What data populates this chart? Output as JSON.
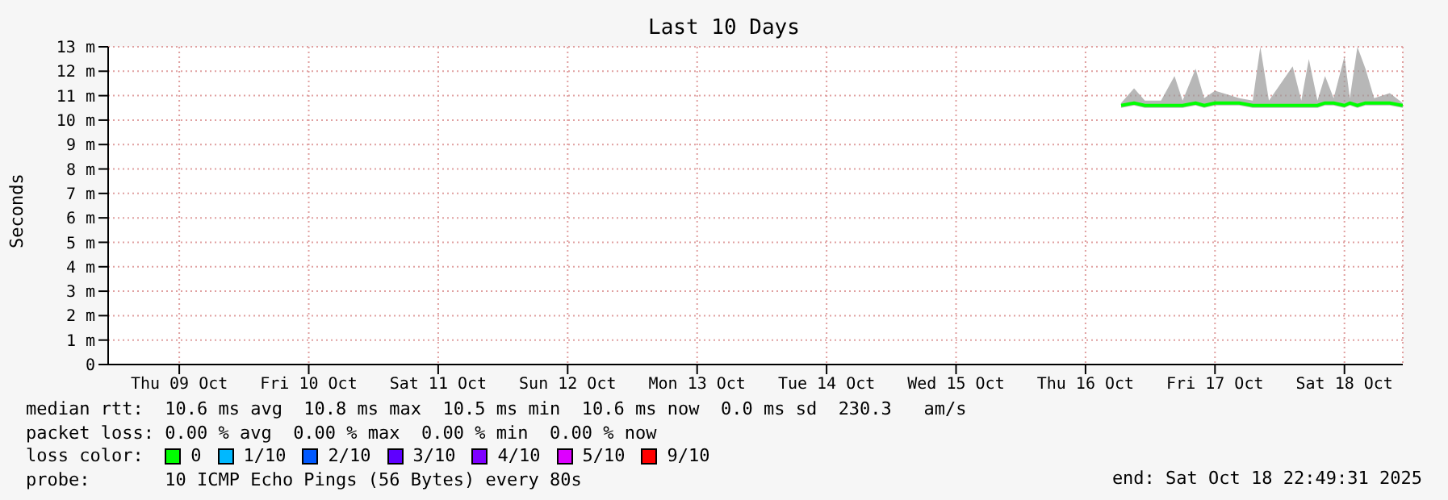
{
  "chart_data": {
    "type": "line",
    "title": "Last 10 Days",
    "ylabel": "Seconds",
    "x": [
      "2025-10-16T18:36",
      "2025-10-16T21:00",
      "2025-10-16T23:00",
      "2025-10-17T02:00",
      "2025-10-17T04:30",
      "2025-10-17T06:00",
      "2025-10-17T08:24",
      "2025-10-17T10:00",
      "2025-10-17T12:00",
      "2025-10-17T16:30",
      "2025-10-17T19:00",
      "2025-10-17T20:24",
      "2025-10-17T22:00",
      "2025-10-18T02:24",
      "2025-10-18T04:00",
      "2025-10-18T05:24",
      "2025-10-18T07:00",
      "2025-10-18T08:24",
      "2025-10-18T10:00",
      "2025-10-18T12:00",
      "2025-10-18T13:00",
      "2025-10-18T14:24",
      "2025-10-18T15:54",
      "2025-10-18T17:30",
      "2025-10-18T20:24",
      "2025-10-18T22:48"
    ],
    "series": [
      {
        "name": "0",
        "color": "#00ff00",
        "values": [
          10.6,
          10.7,
          10.6,
          10.6,
          10.6,
          10.6,
          10.7,
          10.6,
          10.7,
          10.7,
          10.6,
          10.6,
          10.6,
          10.6,
          10.6,
          10.6,
          10.6,
          10.7,
          10.7,
          10.6,
          10.7,
          10.6,
          10.7,
          10.7,
          10.7,
          10.6
        ],
        "lower": [
          10.5,
          10.6,
          10.5,
          10.5,
          10.5,
          10.5,
          10.6,
          10.5,
          10.6,
          10.6,
          10.5,
          10.5,
          10.5,
          10.5,
          10.5,
          10.5,
          10.5,
          10.6,
          10.6,
          10.5,
          10.6,
          10.5,
          10.6,
          10.6,
          10.6,
          10.5
        ],
        "upper": [
          10.7,
          11.3,
          10.8,
          10.8,
          11.8,
          10.8,
          12.1,
          10.9,
          11.2,
          10.9,
          10.8,
          13.0,
          10.8,
          12.2,
          10.8,
          12.5,
          10.8,
          11.8,
          10.9,
          12.6,
          10.9,
          13.0,
          12.1,
          10.9,
          11.1,
          10.7
        ]
      },
      {
        "name": "1/10",
        "color": "#00b8ff",
        "values": [
          null,
          null,
          null,
          null,
          null,
          null,
          null,
          null,
          null,
          null,
          null,
          null,
          null,
          null,
          null,
          null,
          null,
          null,
          null,
          null,
          null,
          null,
          null,
          null,
          null,
          null
        ]
      },
      {
        "name": "2/10",
        "color": "#0059ff",
        "values": [
          null,
          null,
          null,
          null,
          null,
          null,
          null,
          null,
          null,
          null,
          null,
          null,
          null,
          null,
          null,
          null,
          null,
          null,
          null,
          null,
          null,
          null,
          null,
          null,
          null,
          null
        ]
      },
      {
        "name": "3/10",
        "color": "#5e00ff",
        "values": [
          null,
          null,
          null,
          null,
          null,
          null,
          null,
          null,
          null,
          null,
          null,
          null,
          null,
          null,
          null,
          null,
          null,
          null,
          null,
          null,
          null,
          null,
          null,
          null,
          null,
          null
        ]
      },
      {
        "name": "4/10",
        "color": "#7e00ff",
        "values": [
          null,
          null,
          null,
          null,
          null,
          null,
          null,
          null,
          null,
          null,
          null,
          null,
          null,
          null,
          null,
          null,
          null,
          null,
          null,
          null,
          null,
          null,
          null,
          null,
          null,
          null
        ]
      },
      {
        "name": "5/10",
        "color": "#dd00ff",
        "values": [
          null,
          null,
          null,
          null,
          null,
          null,
          null,
          null,
          null,
          null,
          null,
          null,
          null,
          null,
          null,
          null,
          null,
          null,
          null,
          null,
          null,
          null,
          null,
          null,
          null,
          null
        ]
      },
      {
        "name": "9/10",
        "color": "#ff0000",
        "values": [
          null,
          null,
          null,
          null,
          null,
          null,
          null,
          null,
          null,
          null,
          null,
          null,
          null,
          null,
          null,
          null,
          null,
          null,
          null,
          null,
          null,
          null,
          null,
          null,
          null,
          null
        ]
      }
    ],
    "legend_title": "loss color:",
    "legend": "bottom",
    "grid": true,
    "marker": "none",
    "xlim": [
      "2025-10-08T22:49",
      "2025-10-18T22:49"
    ],
    "xticks": [
      {
        "value": "2025-10-09T12:00",
        "label": "Thu 09 Oct"
      },
      {
        "value": "2025-10-10T12:00",
        "label": "Fri 10 Oct"
      },
      {
        "value": "2025-10-11T12:00",
        "label": "Sat 11 Oct"
      },
      {
        "value": "2025-10-12T12:00",
        "label": "Sun 12 Oct"
      },
      {
        "value": "2025-10-13T12:00",
        "label": "Mon 13 Oct"
      },
      {
        "value": "2025-10-14T12:00",
        "label": "Tue 14 Oct"
      },
      {
        "value": "2025-10-15T12:00",
        "label": "Wed 15 Oct"
      },
      {
        "value": "2025-10-16T12:00",
        "label": "Thu 16 Oct"
      },
      {
        "value": "2025-10-17T12:00",
        "label": "Fri 17 Oct"
      },
      {
        "value": "2025-10-18T12:00",
        "label": "Sat 18 Oct"
      }
    ],
    "ylim": [
      0,
      13
    ],
    "yticks": [
      0,
      {
        "value": 1,
        "label": "1 m"
      },
      {
        "value": 2,
        "label": "2 m"
      },
      {
        "value": 3,
        "label": "3 m"
      },
      {
        "value": 4,
        "label": "4 m"
      },
      {
        "value": 5,
        "label": "5 m"
      },
      {
        "value": 6,
        "label": "6 m"
      },
      {
        "value": 7,
        "label": "7 m"
      },
      {
        "value": 8,
        "label": "8 m"
      },
      {
        "value": 9,
        "label": "9 m"
      },
      {
        "value": 10,
        "label": "10 m"
      },
      {
        "value": 11,
        "label": "11 m"
      },
      {
        "value": 12,
        "label": "12 m"
      },
      {
        "value": 13,
        "label": "13 m"
      }
    ],
    "annotations": [
      "median rtt:  10.6 ms avg  10.8 ms max  10.5 ms min  10.6 ms now  0.0 ms sd  230.3   am/s",
      "packet loss: 0.00 % avg  0.00 % max  0.00 % min  0.00 % now",
      "probe:       10 ICMP Echo Pings (56 Bytes) every 80s",
      "end: Sat Oct 18 22:49:31 2025"
    ]
  }
}
